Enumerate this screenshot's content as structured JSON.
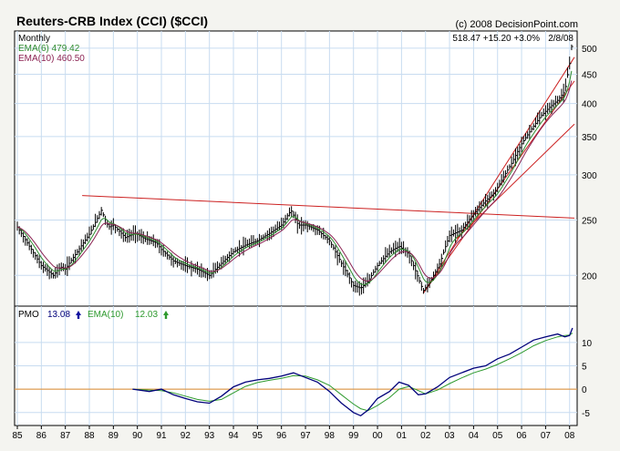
{
  "header": {
    "title": "Reuters-CRB Index (CCI) ($CCI)",
    "copyright": "(c) 2008 DecisionPoint.com",
    "last_quote": "518.47  +15.20  +3.0%",
    "date": "2/8/08"
  },
  "legend": {
    "interval": "Monthly",
    "ema6": "EMA(6) 479.42",
    "ema10": "EMA(10) 460.50"
  },
  "pmo_legend": {
    "pmo_label": "PMO",
    "pmo_value": "13.08",
    "ema_label": "EMA(10)",
    "ema_value": "12.03"
  },
  "colors": {
    "background": "#f4f4f0",
    "grid": "#c8dcf0",
    "bars": "#000000",
    "ema6": "#2e8b2e",
    "ema10": "#8b2252",
    "trendline": "#cc2020",
    "pmo": "#00007a",
    "pmo_ema": "#2e9a2e",
    "zero_line": "#e08a2a",
    "up_arrow": "#1010a0",
    "down_arrow": "#2e9a2e"
  },
  "chart_data": [
    {
      "type": "ohlc",
      "panel": "price",
      "x_ticks": [
        "85",
        "86",
        "87",
        "88",
        "89",
        "90",
        "91",
        "92",
        "93",
        "94",
        "95",
        "96",
        "97",
        "98",
        "99",
        "00",
        "01",
        "02",
        "03",
        "04",
        "05",
        "06",
        "07",
        "08"
      ],
      "x_range": [
        1985.0,
        2008.2
      ],
      "yticks": [
        200,
        250,
        300,
        350,
        400,
        450,
        500
      ],
      "ylim": [
        178,
        528
      ],
      "scale": "log",
      "points": [
        [
          1985.0,
          243
        ],
        [
          1985.5,
          225
        ],
        [
          1986.0,
          208
        ],
        [
          1986.5,
          200
        ],
        [
          1986.8,
          207
        ],
        [
          1987.0,
          205
        ],
        [
          1987.5,
          220
        ],
        [
          1988.0,
          236
        ],
        [
          1988.3,
          250
        ],
        [
          1988.5,
          260
        ],
        [
          1988.8,
          243
        ],
        [
          1989.0,
          245
        ],
        [
          1989.5,
          233
        ],
        [
          1989.9,
          237
        ],
        [
          1990.3,
          232
        ],
        [
          1990.8,
          228
        ],
        [
          1991.0,
          222
        ],
        [
          1991.5,
          212
        ],
        [
          1992.0,
          208
        ],
        [
          1992.5,
          205
        ],
        [
          1993.0,
          200
        ],
        [
          1993.5,
          210
        ],
        [
          1994.0,
          220
        ],
        [
          1994.5,
          226
        ],
        [
          1995.0,
          230
        ],
        [
          1995.5,
          237
        ],
        [
          1996.0,
          245
        ],
        [
          1996.4,
          260
        ],
        [
          1996.7,
          245
        ],
        [
          1997.0,
          245
        ],
        [
          1997.5,
          240
        ],
        [
          1998.0,
          230
        ],
        [
          1998.5,
          210
        ],
        [
          1999.0,
          192
        ],
        [
          1999.3,
          190
        ],
        [
          1999.6,
          195
        ],
        [
          2000.0,
          208
        ],
        [
          2000.5,
          220
        ],
        [
          2000.9,
          225
        ],
        [
          2001.3,
          218
        ],
        [
          2001.7,
          198
        ],
        [
          2001.9,
          188
        ],
        [
          2002.2,
          195
        ],
        [
          2002.6,
          210
        ],
        [
          2003.0,
          235
        ],
        [
          2003.5,
          240
        ],
        [
          2004.0,
          256
        ],
        [
          2004.5,
          270
        ],
        [
          2004.9,
          280
        ],
        [
          2005.2,
          295
        ],
        [
          2005.6,
          315
        ],
        [
          2006.0,
          340
        ],
        [
          2006.4,
          360
        ],
        [
          2006.8,
          380
        ],
        [
          2007.2,
          395
        ],
        [
          2007.5,
          405
        ],
        [
          2007.8,
          420
        ],
        [
          2008.0,
          470
        ],
        [
          2008.12,
          518
        ]
      ]
    },
    {
      "type": "line",
      "panel": "pmo",
      "ylim": [
        -7,
        17
      ],
      "yticks": [
        -5,
        0,
        5,
        10
      ],
      "series": [
        {
          "name": "PMO",
          "x": [
            1989.8,
            1990.5,
            1991.0,
            1991.5,
            1992.0,
            1992.5,
            1993.0,
            1993.5,
            1994.0,
            1994.5,
            1995.0,
            1995.5,
            1996.0,
            1996.5,
            1997.0,
            1997.5,
            1998.0,
            1998.5,
            1999.0,
            1999.3,
            1999.6,
            2000.0,
            2000.5,
            2000.9,
            2001.3,
            2001.7,
            2002.0,
            2002.5,
            2003.0,
            2003.5,
            2004.0,
            2004.5,
            2005.0,
            2005.5,
            2006.0,
            2006.5,
            2007.0,
            2007.5,
            2007.8,
            2008.0,
            2008.12
          ],
          "y": [
            0,
            -0.5,
            0,
            -1.2,
            -2.0,
            -2.7,
            -3.0,
            -1.5,
            0.5,
            1.5,
            2.0,
            2.3,
            2.8,
            3.5,
            2.5,
            1.5,
            -0.5,
            -3.0,
            -5.0,
            -5.7,
            -4.5,
            -2.0,
            -0.5,
            1.5,
            0.8,
            -1.2,
            -1.0,
            0.5,
            2.5,
            3.5,
            4.5,
            5.0,
            6.5,
            7.5,
            9.0,
            10.5,
            11.2,
            11.8,
            11.2,
            11.5,
            13.1
          ]
        },
        {
          "name": "EMA(10)",
          "x": [
            1989.8,
            1990.5,
            1991.0,
            1991.5,
            1992.0,
            1992.5,
            1993.0,
            1993.5,
            1994.0,
            1994.5,
            1995.0,
            1995.5,
            1996.0,
            1996.5,
            1997.0,
            1997.5,
            1998.0,
            1998.5,
            1999.0,
            1999.3,
            1999.6,
            2000.0,
            2000.5,
            2000.9,
            2001.3,
            2001.7,
            2002.0,
            2002.5,
            2003.0,
            2003.5,
            2004.0,
            2004.5,
            2005.0,
            2005.5,
            2006.0,
            2006.5,
            2007.0,
            2007.5,
            2007.8,
            2008.0,
            2008.12
          ],
          "y": [
            0,
            -0.2,
            -0.3,
            -0.8,
            -1.5,
            -2.2,
            -2.6,
            -2.2,
            -0.8,
            0.6,
            1.4,
            1.9,
            2.3,
            2.9,
            2.8,
            2.0,
            0.8,
            -1.2,
            -3.2,
            -4.2,
            -4.6,
            -3.5,
            -1.8,
            0.0,
            0.6,
            -0.3,
            -1.0,
            -0.2,
            1.2,
            2.4,
            3.5,
            4.3,
            5.3,
            6.5,
            7.8,
            9.3,
            10.4,
            11.2,
            11.5,
            11.6,
            12.0
          ]
        }
      ]
    }
  ]
}
